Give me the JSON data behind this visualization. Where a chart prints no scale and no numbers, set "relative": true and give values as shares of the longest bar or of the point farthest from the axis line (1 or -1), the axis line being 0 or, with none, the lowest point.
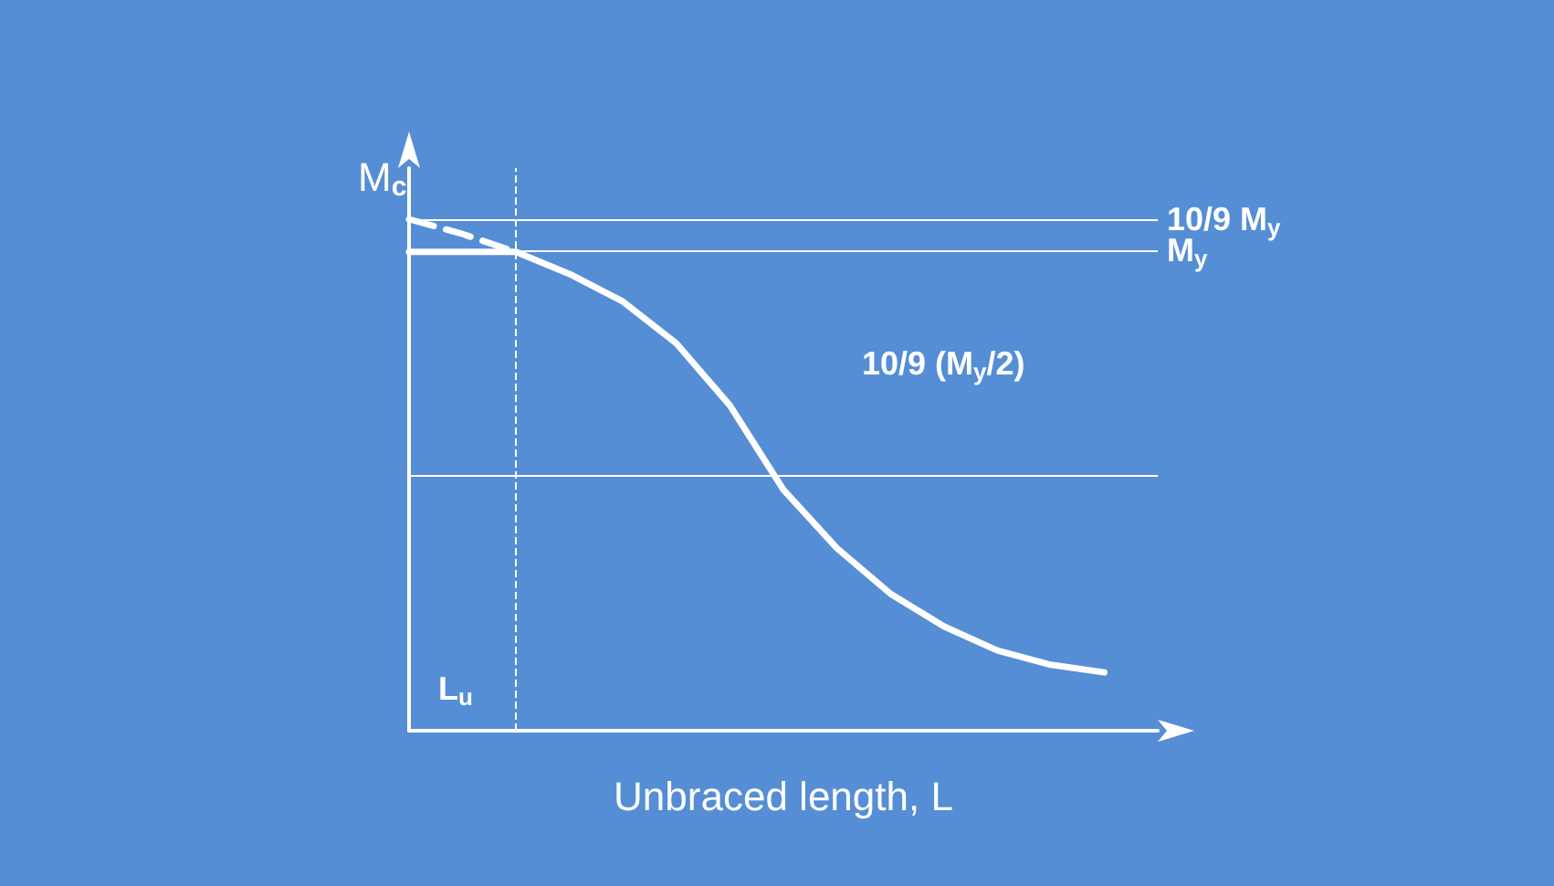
{
  "chart_data": {
    "type": "line",
    "relative": true,
    "xlabel": "Unbraced length, L",
    "ylabel": "M$_{c}$",
    "categories": [
      null,
      null,
      null,
      null,
      null,
      null,
      null,
      null,
      null,
      null,
      null,
      null,
      null,
      null,
      null
    ],
    "series": [
      {
        "color": "#ffffff",
        "values": [
          0.936,
          0.936,
          0.936,
          0.893,
          0.839,
          0.757,
          0.636,
          0.471,
          0.357,
          0.268,
          0.204,
          0.157,
          0.129,
          0.114,
          null
        ]
      },
      {
        "color": "#ffffff",
        "line_style": "dashed",
        "values": [
          1.0,
          0.971,
          0.936,
          null,
          null,
          null,
          null,
          null,
          null,
          null,
          null,
          null,
          null,
          null,
          null
        ]
      }
    ],
    "ref_lines": [
      {
        "axis": "y",
        "value": 1.0,
        "label": "10/9 M$_{y}$",
        "color": "#ffffff"
      },
      {
        "axis": "y",
        "value": 0.936,
        "label": "M$_{y}$",
        "color": "#ffffff"
      },
      {
        "axis": "y",
        "value": 0.498,
        "color": "#ffffff"
      }
    ],
    "annotations": [
      "10/9 (M$_{y}$/2)",
      "L$_{u}$"
    ],
    "grid": false,
    "marker": "none",
    "line_style": "solid"
  }
}
